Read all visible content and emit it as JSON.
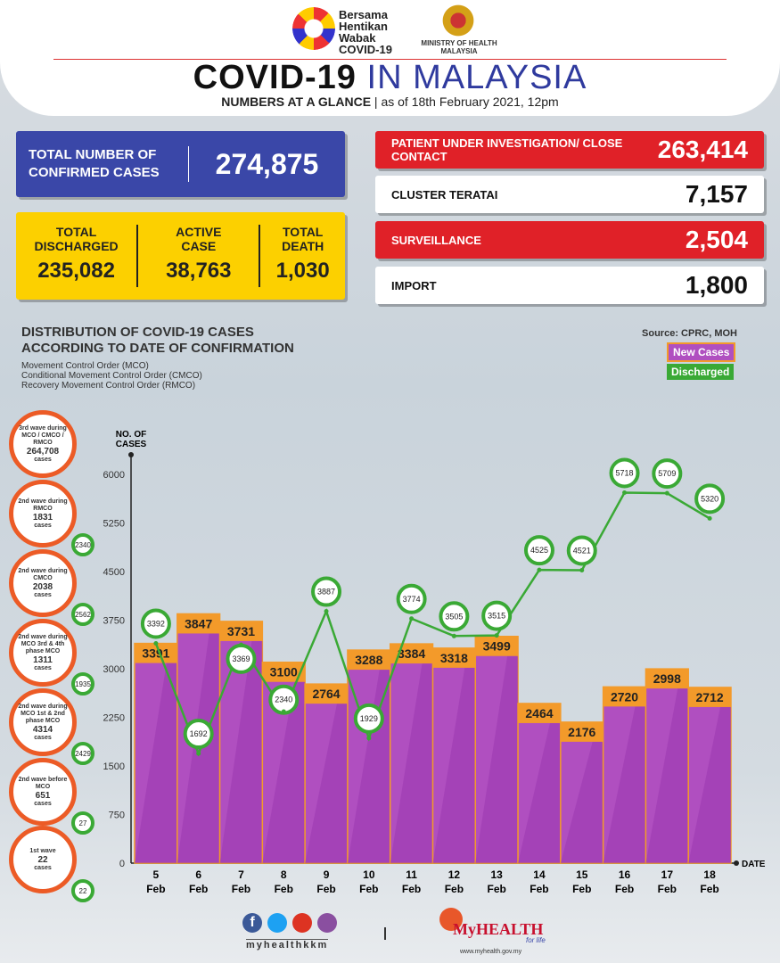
{
  "header": {
    "logo_text": [
      "Bersama",
      "Hentikan",
      "Wabak",
      "COVID-19"
    ],
    "ministry": "MINISTRY OF HEALTH MALAYSIA",
    "title_bold": "COVID-19",
    "title_light": " IN MALAYSIA",
    "subtitle_bold": "NUMBERS AT A GLANCE",
    "subtitle_rest": " | as of 18th February 2021, 12pm"
  },
  "totals": {
    "confirmed_label": "TOTAL NUMBER OF CONFIRMED CASES",
    "confirmed": "274,875",
    "discharged_label": "TOTAL DISCHARGED",
    "discharged": "235,082",
    "active_label": "ACTIVE CASE",
    "active": "38,763",
    "death_label": "TOTAL DEATH",
    "death": "1,030"
  },
  "right_cards": [
    {
      "label": "PATIENT UNDER INVESTIGATION/ CLOSE CONTACT",
      "value": "263,414"
    },
    {
      "label": "CLUSTER TERATAI",
      "value": "7,157"
    },
    {
      "label": "SURVEILLANCE",
      "value": "2,504"
    },
    {
      "label": "IMPORT",
      "value": "1,800"
    }
  ],
  "chart_heading": {
    "title1": "DISTRIBUTION OF COVID-19 CASES",
    "title2": "ACCORDING TO DATE OF CONFIRMATION",
    "notes": [
      "Movement Control Order (MCO)",
      "Conditional Movement Control Order (CMCO)",
      "Recovery Movement Control Order (RMCO)"
    ],
    "source": "Source: CPRC, MOH"
  },
  "waves": [
    {
      "text": "3rd wave during MCO / CMCO / RMCO",
      "count": "264,708",
      "unit": "cases",
      "discharged": null
    },
    {
      "text": "2nd wave during RMCO",
      "count": "1831",
      "unit": "cases",
      "discharged": "2340"
    },
    {
      "text": "2nd wave during CMCO",
      "count": "2038",
      "unit": "cases",
      "discharged": "2562"
    },
    {
      "text": "2nd wave during MCO 3rd & 4th phase MCO",
      "count": "1311",
      "unit": "cases",
      "discharged": "1935"
    },
    {
      "text": "2nd wave during MCO 1st & 2nd phase MCO",
      "count": "4314",
      "unit": "cases",
      "discharged": "2429"
    },
    {
      "text": "2nd wave before MCO",
      "count": "651",
      "unit": "cases",
      "discharged": "27"
    },
    {
      "text": "1st wave",
      "count": "22",
      "unit": "cases",
      "discharged": "22"
    }
  ],
  "chart_data": {
    "type": "bar+line",
    "ylabel": "NO. OF CASES",
    "xlabel": "DATE",
    "ylim": [
      0,
      6000
    ],
    "yticks": [
      0,
      750,
      1500,
      2250,
      3000,
      3750,
      4500,
      5250,
      6000
    ],
    "categories": [
      "5 Feb",
      "6 Feb",
      "7 Feb",
      "8 Feb",
      "9 Feb",
      "10 Feb",
      "11 Feb",
      "12 Feb",
      "13 Feb",
      "14 Feb",
      "15 Feb",
      "16 Feb",
      "17 Feb",
      "18 Feb"
    ],
    "series": [
      {
        "name": "New Cases",
        "type": "bar",
        "color": "#b04fc0",
        "values": [
          3391,
          3847,
          3731,
          3100,
          2764,
          3288,
          3384,
          3318,
          3499,
          2464,
          2176,
          2720,
          2998,
          2712
        ]
      },
      {
        "name": "Discharged",
        "type": "line",
        "color": "#3aa935",
        "values": [
          3392,
          1692,
          3369,
          2340,
          3887,
          1929,
          3774,
          3505,
          3515,
          4525,
          4521,
          5718,
          5709,
          5320
        ]
      }
    ],
    "legend": "top-right"
  },
  "footer": {
    "handle": "myhealthkkm",
    "brand": "MyHEALTH",
    "tagline": "for life",
    "url": "www.myhealth.gov.my"
  }
}
